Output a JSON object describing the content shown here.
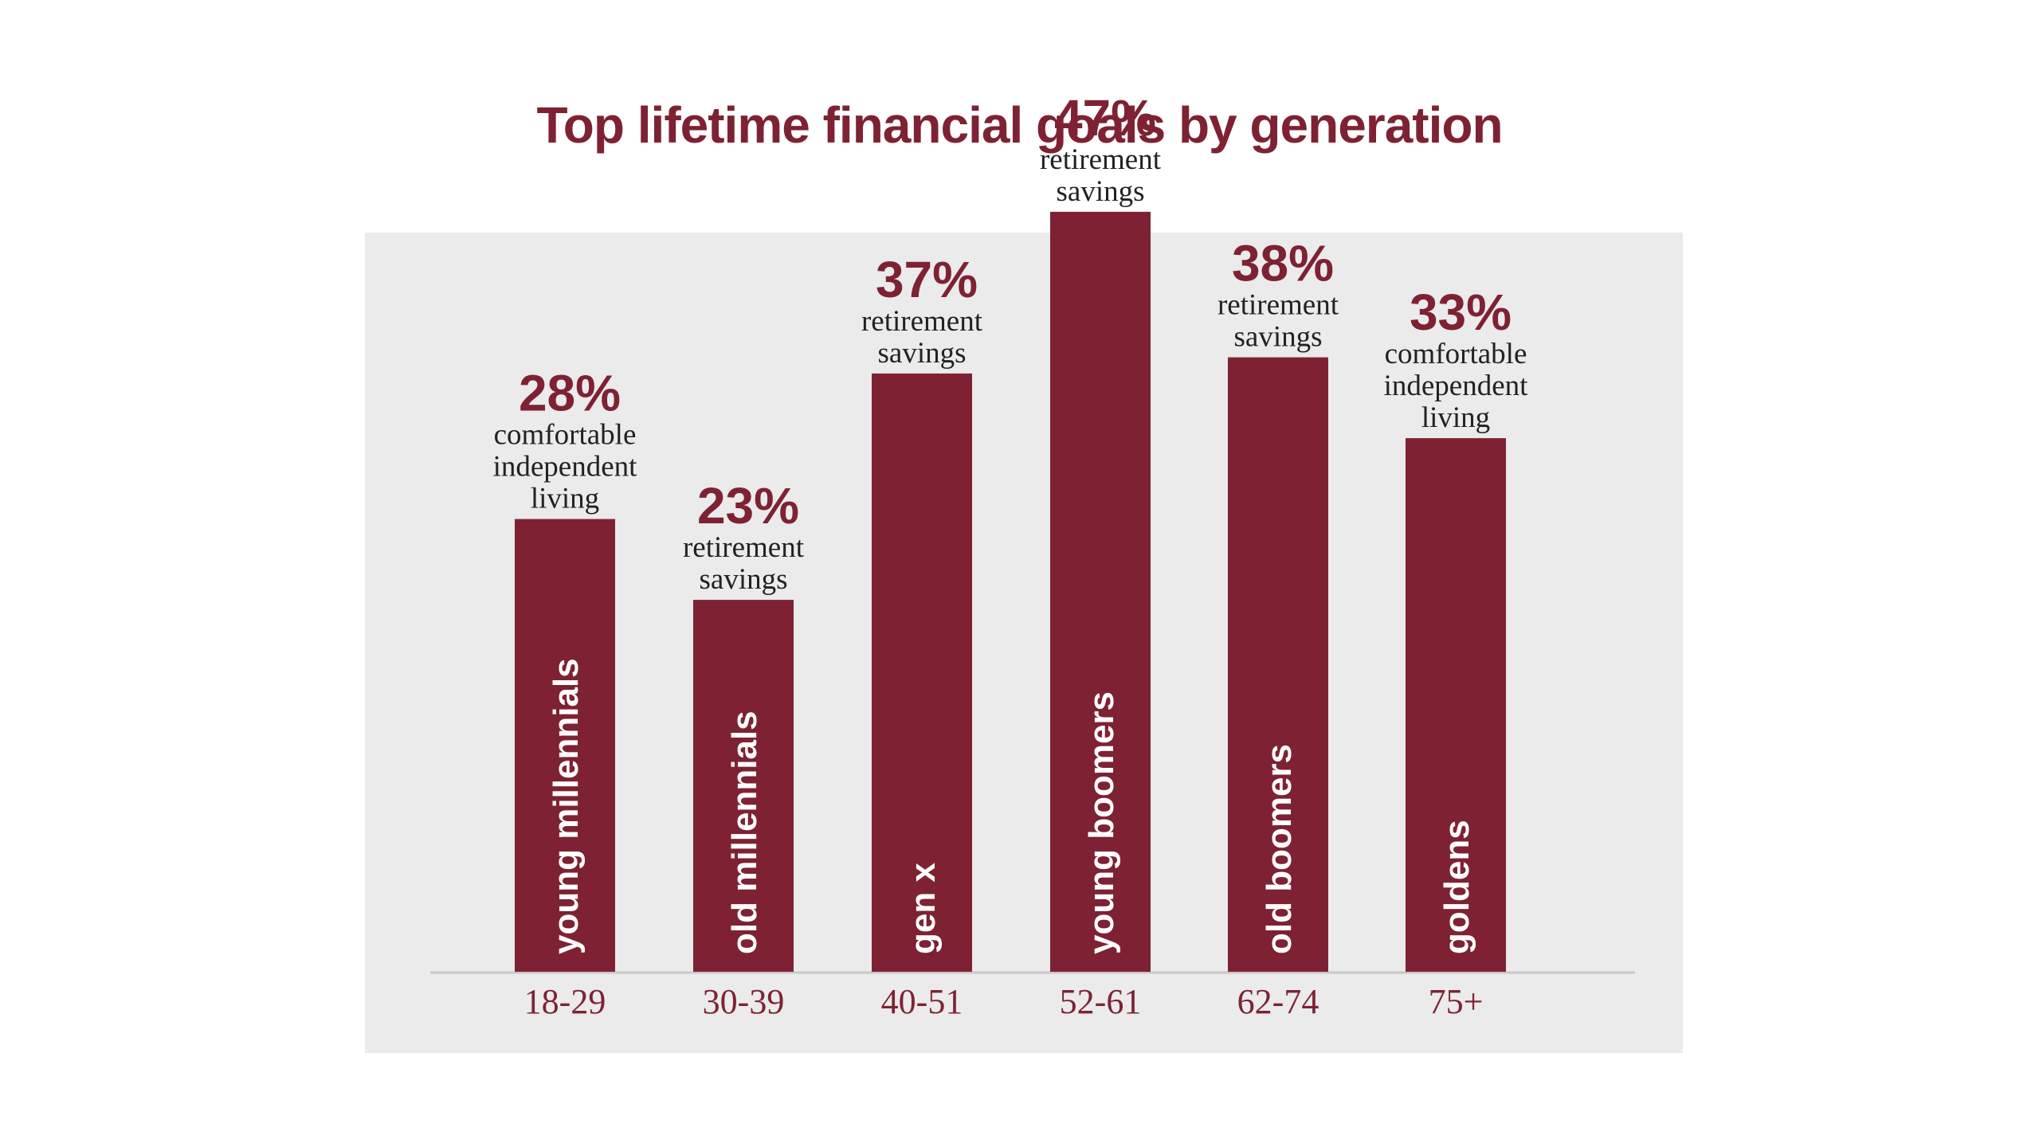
{
  "colors": {
    "bar": "#7e2233",
    "accent": "#7e2233",
    "panel": "#ebebeb",
    "goal_text": "#222222",
    "generation_text": "#ffffff",
    "axis": "#c8c8c8"
  },
  "chart_data": {
    "type": "bar",
    "title": "Top lifetime financial goals by generation",
    "ylim": [
      0,
      50
    ],
    "grid": false,
    "categories": [
      "18-29",
      "30-39",
      "40-51",
      "52-61",
      "62-74",
      "75+"
    ],
    "values": [
      28,
      23,
      37,
      47,
      38,
      33
    ],
    "value_labels": [
      "28%",
      "23%",
      "37%",
      "47%",
      "38%",
      "33%"
    ],
    "generations": [
      "young millennials",
      "old millennials",
      "gen x",
      "young boomers",
      "old boomers",
      "goldens"
    ],
    "goals": [
      [
        "comfortable",
        "independent",
        "living"
      ],
      [
        "retirement",
        "savings"
      ],
      [
        "retirement",
        "savings"
      ],
      [
        "retirement",
        "savings"
      ],
      [
        "retirement",
        "savings"
      ],
      [
        "comfortable",
        "independent",
        "living"
      ]
    ]
  }
}
